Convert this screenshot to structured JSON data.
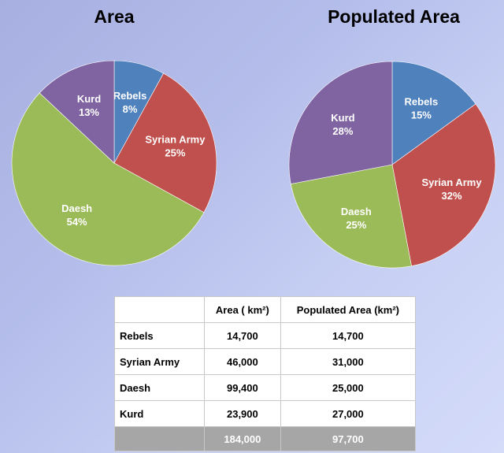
{
  "chart_data": [
    {
      "type": "pie",
      "title": "Area",
      "slices": [
        {
          "label": "Rebels",
          "value": 8,
          "value_label": "8%",
          "color": "#4f81bd"
        },
        {
          "label": "Syrian Army",
          "value": 25,
          "value_label": "25%",
          "color": "#c0504d"
        },
        {
          "label": "Daesh",
          "value": 54,
          "value_label": "54%",
          "color": "#9bbb59"
        },
        {
          "label": "Kurd",
          "value": 13,
          "value_label": "13%",
          "color": "#8064a2"
        }
      ]
    },
    {
      "type": "pie",
      "title": "Populated Area",
      "slices": [
        {
          "label": "Rebels",
          "value": 15,
          "value_label": "15%",
          "color": "#4f81bd"
        },
        {
          "label": "Syrian Army",
          "value": 32,
          "value_label": "32%",
          "color": "#c0504d"
        },
        {
          "label": "Daesh",
          "value": 25,
          "value_label": "25%",
          "color": "#9bbb59"
        },
        {
          "label": "Kurd",
          "value": 28,
          "value_label": "28%",
          "color": "#8064a2"
        }
      ]
    },
    {
      "type": "table",
      "columns": [
        "",
        "Area ( km²)",
        "Populated Area (km²)"
      ],
      "rows": [
        [
          "Rebels",
          "14,700",
          "14,700"
        ],
        [
          "Syrian Army",
          "46,000",
          "31,000"
        ],
        [
          "Daesh",
          "99,400",
          "25,000"
        ],
        [
          "Kurd",
          "23,900",
          "27,000"
        ],
        [
          "",
          "184,000",
          "97,700"
        ]
      ]
    }
  ]
}
